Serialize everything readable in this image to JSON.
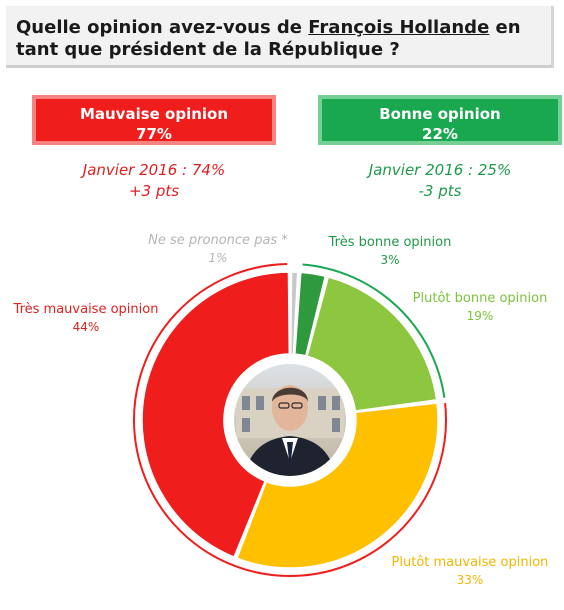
{
  "question": {
    "prefix": "Quelle opinion avez-vous de ",
    "name": "François Hollande",
    "suffix": " en tant que président de la République ?"
  },
  "summary": {
    "bad": {
      "label": "Mauvaise opinion",
      "value": "77%",
      "compare": "Janvier 2016 : 74%",
      "delta": "+3 pts",
      "color": "#f01d1d"
    },
    "good": {
      "label": "Bonne opinion",
      "value": "22%",
      "compare": "Janvier 2016 : 25%",
      "delta": "-3 pts",
      "color": "#19a84f"
    }
  },
  "chart_data": {
    "type": "pie",
    "variant": "donut",
    "categories": [
      "Ne se prononce pas *",
      "Très bonne opinion",
      "Plutôt bonne opinion",
      "Plutôt mauvaise opinion",
      "Très mauvaise opinion"
    ],
    "values": [
      1,
      3,
      19,
      33,
      44
    ],
    "value_labels": [
      "1%",
      "3%",
      "19%",
      "33%",
      "44%"
    ],
    "colors": [
      "#c8c8c8",
      "#2e9a3d",
      "#8dc63f",
      "#ffc000",
      "#f01d1d"
    ],
    "label_colors": [
      "#b5b5b5",
      "#1e9a49",
      "#7cc33a",
      "#f2b600",
      "#e01f1f"
    ]
  }
}
